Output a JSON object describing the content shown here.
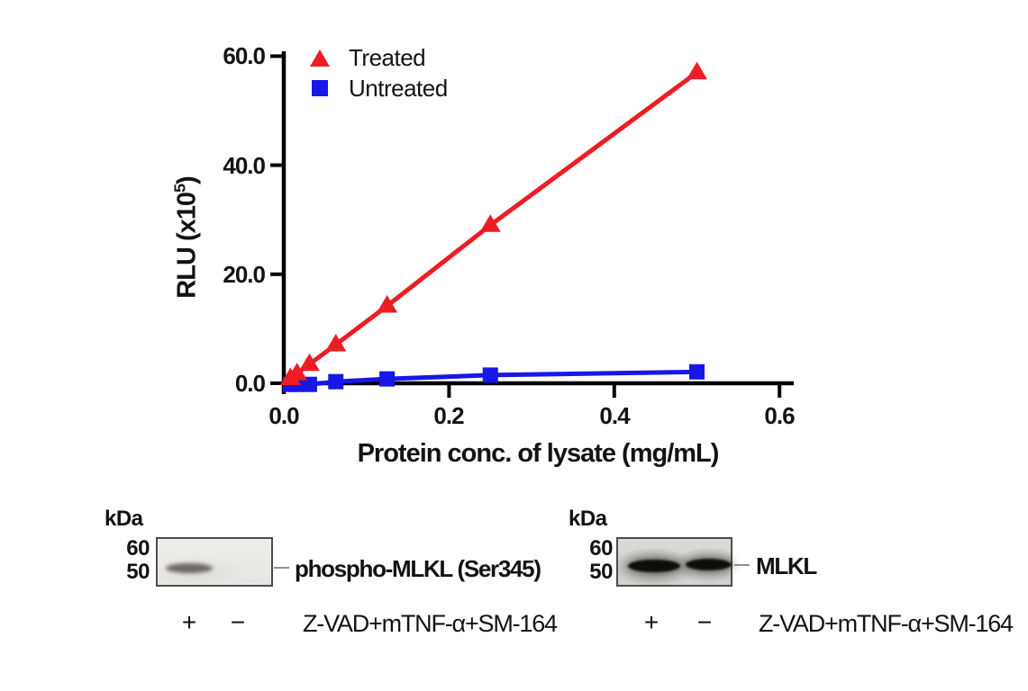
{
  "chart_data": {
    "type": "line",
    "title": "",
    "xlabel": "Protein conc. of lysate (mg/mL)",
    "ylabel": "RLU (x10⁵)",
    "ylabel_parts": {
      "base": "RLU (x10",
      "sup": "5",
      "close": ")"
    },
    "x": [
      0.008,
      0.016,
      0.031,
      0.063,
      0.125,
      0.25,
      0.5
    ],
    "series": [
      {
        "name": "Treated",
        "color": "#ee1c23",
        "marker": "triangle",
        "values": [
          0.9,
          1.8,
          3.5,
          7.1,
          14.2,
          29.0,
          57.0
        ]
      },
      {
        "name": "Untreated",
        "color": "#1717e6",
        "marker": "square",
        "values": [
          -0.2,
          -0.2,
          -0.2,
          0.3,
          0.8,
          1.5,
          2.1
        ]
      }
    ],
    "xlim": [
      0.0,
      0.6
    ],
    "ylim": [
      0.0,
      60.0
    ],
    "xticks": [
      0.0,
      0.2,
      0.4,
      0.6
    ],
    "yticks": [
      0.0,
      20.0,
      40.0,
      60.0
    ],
    "xtick_labels": [
      "0.0",
      "0.2",
      "0.4",
      "0.6"
    ],
    "ytick_labels": [
      "0.0",
      "20.0",
      "40.0",
      "60.0"
    ],
    "grid": false,
    "legend_position": "upper-left-inside",
    "axis_color": "#000000"
  },
  "blots": [
    {
      "kda_label": "kDa",
      "marker_60": "60",
      "marker_50": "50",
      "target_label": "phospho-MLKL (Ser345)",
      "lane_plus": "+",
      "lane_minus": "−",
      "treatment_label": "Z-VAD+mTNF-α+SM-164",
      "band_lanes": [
        "+"
      ]
    },
    {
      "kda_label": "kDa",
      "marker_60": "60",
      "marker_50": "50",
      "target_label": "MLKL",
      "lane_plus": "+",
      "lane_minus": "−",
      "treatment_label": "Z-VAD+mTNF-α+SM-164",
      "band_lanes": [
        "+",
        "−"
      ]
    }
  ]
}
